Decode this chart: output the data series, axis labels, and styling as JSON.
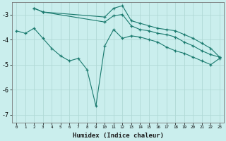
{
  "xlabel": "Humidex (Indice chaleur)",
  "bg_color": "#caeeed",
  "grid_color": "#b0d9d6",
  "line_color": "#1a7a6e",
  "xlim": [
    -0.5,
    23.5
  ],
  "ylim": [
    -7.3,
    -2.5
  ],
  "yticks": [
    -7,
    -6,
    -5,
    -4,
    -3
  ],
  "xticks": [
    0,
    1,
    2,
    3,
    4,
    5,
    6,
    7,
    8,
    9,
    10,
    11,
    12,
    13,
    14,
    15,
    16,
    17,
    18,
    19,
    20,
    21,
    22,
    23
  ],
  "line1_x": [
    0,
    1,
    2,
    3,
    4,
    5,
    6,
    7,
    8,
    9,
    10,
    11,
    12,
    13,
    14,
    15,
    16,
    17,
    18,
    19,
    20,
    21,
    22,
    23
  ],
  "line1_y": [
    -3.65,
    -3.75,
    -3.55,
    -3.95,
    -4.35,
    -4.65,
    -4.85,
    -4.75,
    -5.2,
    -6.65,
    -4.25,
    -3.6,
    -3.95,
    -3.85,
    -3.9,
    -4.0,
    -4.1,
    -4.3,
    -4.45,
    -4.55,
    -4.7,
    -4.85,
    -5.0,
    -4.75
  ],
  "line2_x": [
    2,
    3,
    10,
    11,
    12,
    13,
    14,
    15,
    16,
    17,
    18,
    19,
    20,
    21,
    22,
    23
  ],
  "line2_y": [
    -2.75,
    -2.9,
    -3.1,
    -2.75,
    -2.65,
    -3.25,
    -3.35,
    -3.45,
    -3.55,
    -3.6,
    -3.65,
    -3.8,
    -3.95,
    -4.15,
    -4.35,
    -4.7
  ],
  "line3_x": [
    2,
    3,
    10,
    11,
    12,
    13,
    14,
    15,
    16,
    17,
    18,
    19,
    20,
    21,
    22,
    23
  ],
  "line3_y": [
    -2.75,
    -2.9,
    -3.3,
    -3.05,
    -3.0,
    -3.45,
    -3.6,
    -3.65,
    -3.75,
    -3.8,
    -3.9,
    -4.1,
    -4.25,
    -4.45,
    -4.6,
    -4.7
  ]
}
